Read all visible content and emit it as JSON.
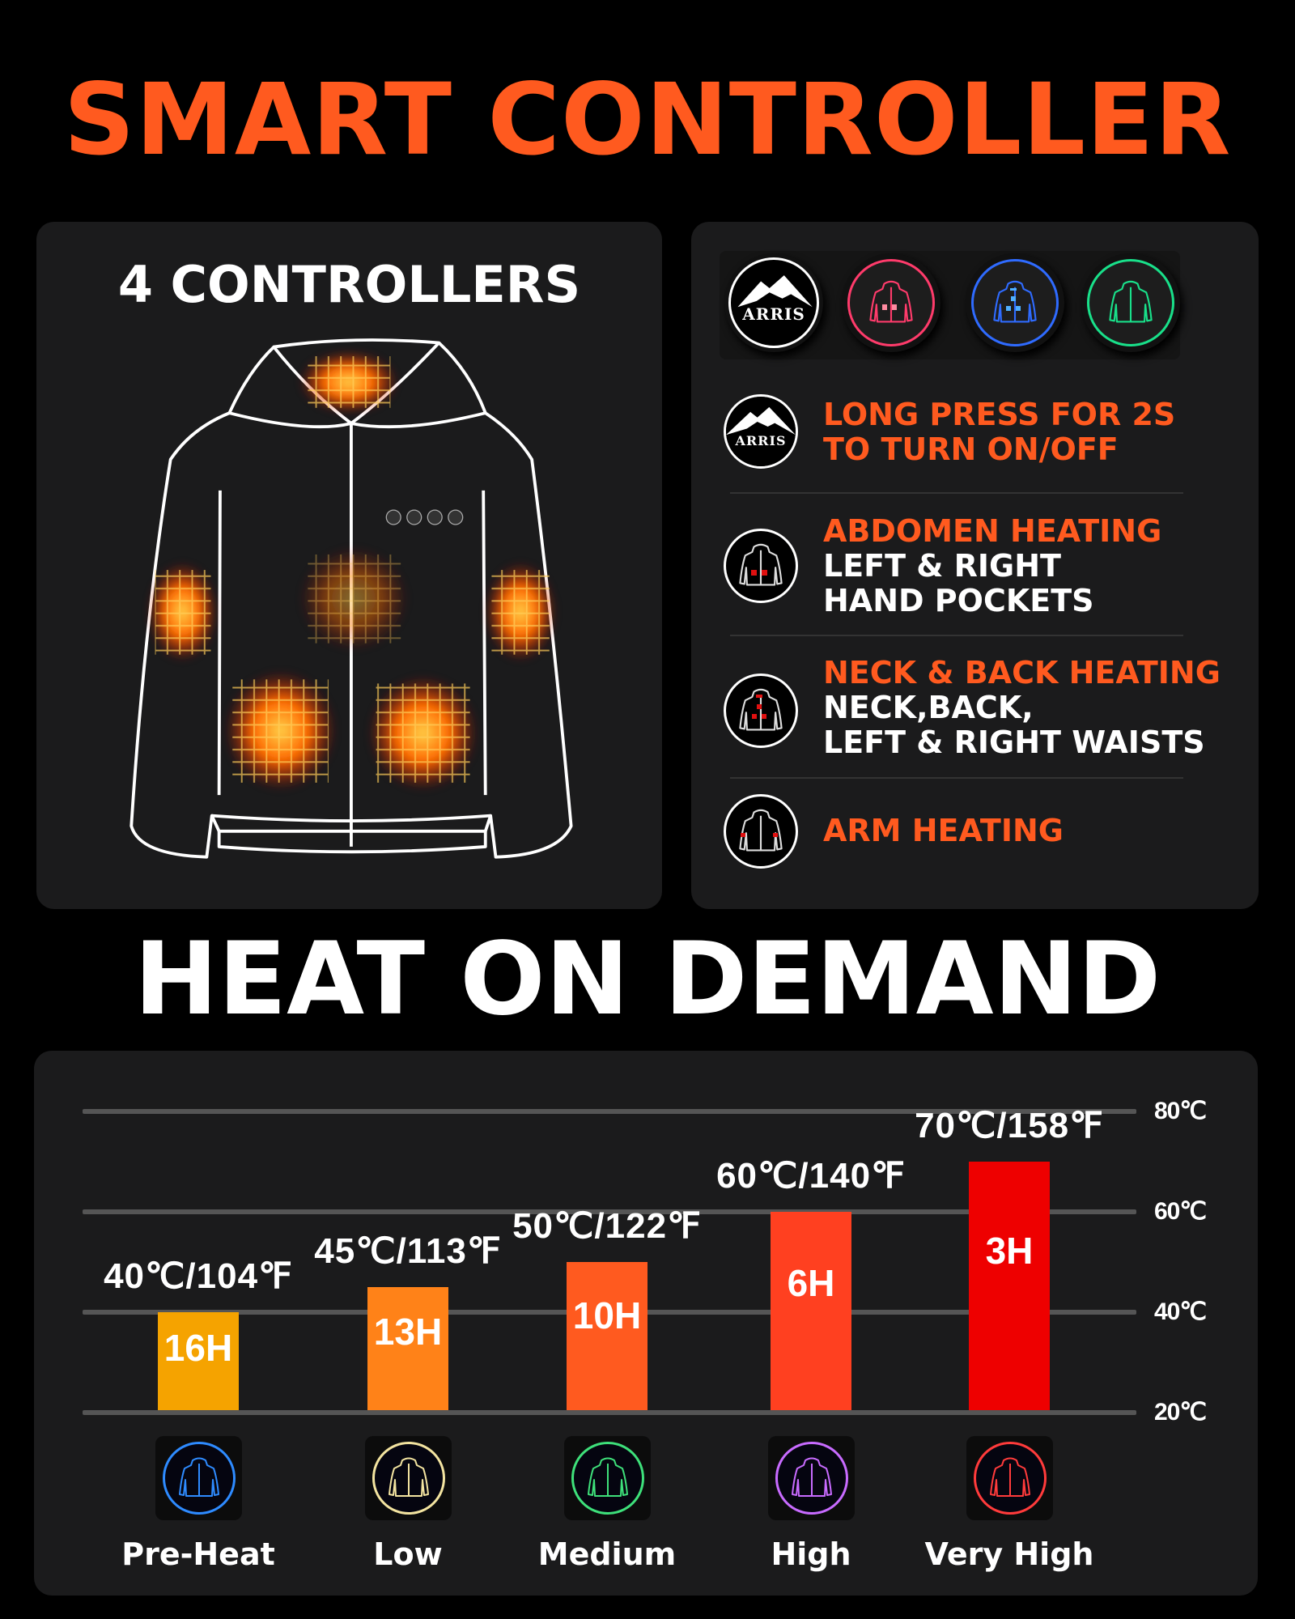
{
  "header": {
    "title": "SMART CONTROLLER"
  },
  "controllers_panel": {
    "title": "4 CONTROLLERS"
  },
  "buttons": [
    {
      "icon": "arris-logo-icon",
      "logo_text": "ARRIS",
      "color": "#ffffff"
    },
    {
      "icon": "jacket-abdomen-icon",
      "color": "#ff3b6b"
    },
    {
      "icon": "jacket-neck-back-icon",
      "color": "#2f6bff"
    },
    {
      "icon": "jacket-arm-icon",
      "color": "#19e08a"
    }
  ],
  "functions": [
    {
      "icon": "arris-logo-icon",
      "logo_text": "ARRIS",
      "title": "LONG PRESS FOR 2S",
      "lines": [
        "TO TURN ON/OFF"
      ],
      "lines_orange": true
    },
    {
      "icon": "jacket-abdomen-icon",
      "title": "ABDOMEN HEATING",
      "lines": [
        "LEFT & RIGHT",
        "HAND POCKETS"
      ]
    },
    {
      "icon": "jacket-neck-back-icon",
      "title": "NECK & BACK HEATING",
      "lines": [
        "NECK,BACK,",
        "LEFT & RIGHT WAISTS"
      ]
    },
    {
      "icon": "jacket-arm-icon",
      "title": "ARM HEATING",
      "lines": []
    }
  ],
  "section2": {
    "title": "HEAT ON DEMAND"
  },
  "accent_color": "#ff5a1f",
  "chart_data": {
    "type": "bar",
    "categories": [
      "Pre-Heat",
      "Low",
      "Medium",
      "High",
      "Very High"
    ],
    "temperature_c": [
      40,
      45,
      50,
      60,
      70
    ],
    "value_labels": [
      "40℃/104℉",
      "45℃/113℉",
      "50℃/122℉",
      "60℃/140℉",
      "70℃/158℉"
    ],
    "duration_labels": [
      "16H",
      "13H",
      "10H",
      "6H",
      "3H"
    ],
    "bar_colors": [
      "#f5a300",
      "#ff8218",
      "#ff5a1f",
      "#ff4020",
      "#ee0000"
    ],
    "icon_colors": [
      "#2e8bff",
      "#f3e4a0",
      "#3ee07a",
      "#c86bff",
      "#ff3b3b"
    ],
    "ylim": [
      20,
      80
    ],
    "yticks": [
      "20℃",
      "40℃",
      "60℃",
      "80℃"
    ],
    "grid": true
  }
}
